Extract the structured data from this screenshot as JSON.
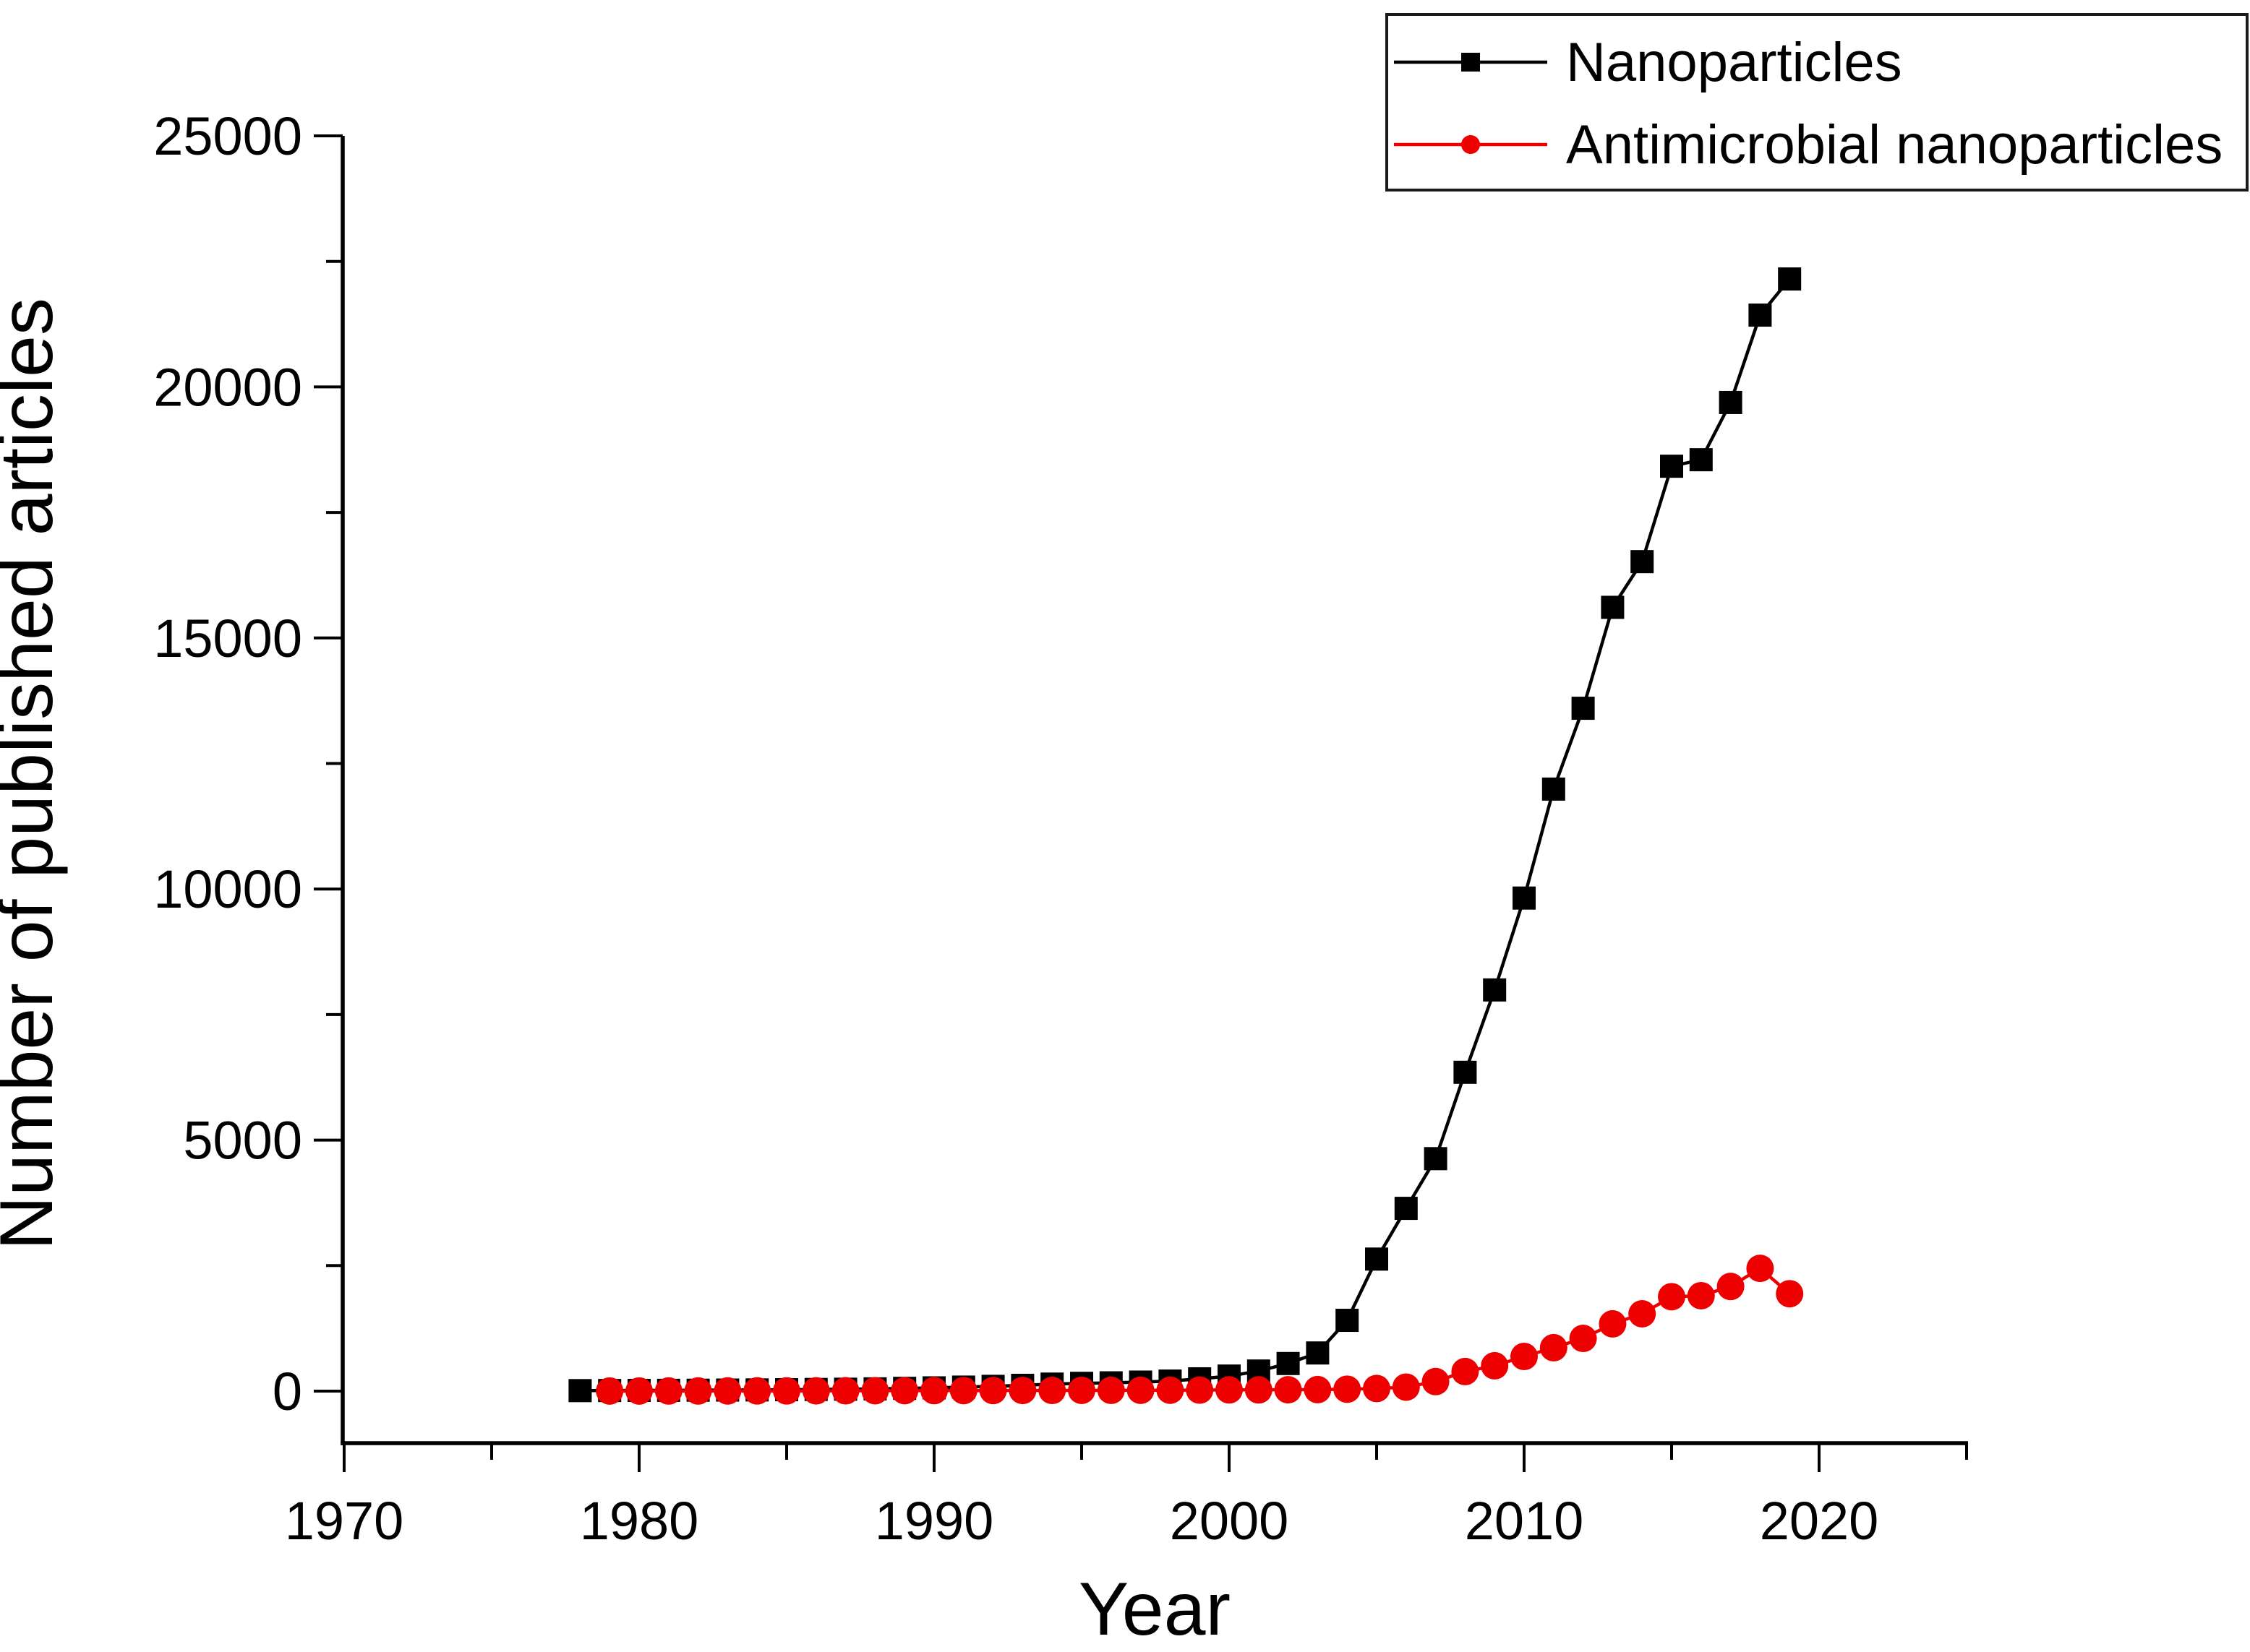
{
  "figure": {
    "background": "#ffffff"
  },
  "chart_data": {
    "type": "line",
    "title": "",
    "xlabel": "Year",
    "ylabel": "Number of published articles",
    "grid": false,
    "legend_position": "top-right",
    "axis_color": "#000000",
    "x_range": [
      1970,
      2025
    ],
    "y_range": [
      -1040,
      25000
    ],
    "x_major_ticks": [
      1970,
      1980,
      1990,
      2000,
      2010,
      2020
    ],
    "x_minor_ticks": [
      1975,
      1985,
      1995,
      2005,
      2015,
      2025
    ],
    "y_major_ticks": [
      0,
      5000,
      10000,
      15000,
      20000,
      25000
    ],
    "y_minor_ticks": [
      2500,
      7500,
      12500,
      17500,
      22500
    ],
    "series": [
      {
        "name": "Nanoparticles",
        "color": "#000000",
        "marker": "square",
        "x": [
          1978,
          1979,
          1980,
          1981,
          1982,
          1983,
          1984,
          1985,
          1986,
          1987,
          1988,
          1989,
          1990,
          1991,
          1992,
          1993,
          1994,
          1995,
          1996,
          1997,
          1998,
          1999,
          2000,
          2001,
          2002,
          2003,
          2004,
          2005,
          2006,
          2007,
          2008,
          2009,
          2010,
          2011,
          2012,
          2013,
          2014,
          2015,
          2016,
          2017,
          2018,
          2019
        ],
        "y": [
          10,
          12,
          14,
          16,
          18,
          21,
          24,
          28,
          33,
          38,
          45,
          55,
          65,
          80,
          95,
          115,
          140,
          155,
          165,
          180,
          200,
          245,
          300,
          400,
          550,
          760,
          1410,
          2630,
          3640,
          4630,
          6350,
          7990,
          9820,
          11990,
          13600,
          15610,
          16520,
          18420,
          18550,
          19690,
          21430,
          22150
        ]
      },
      {
        "name": "Antimicrobial nanoparticles",
        "color": "#ee0000",
        "marker": "circle",
        "x": [
          1979,
          1980,
          1981,
          1982,
          1983,
          1984,
          1985,
          1986,
          1987,
          1988,
          1989,
          1990,
          1991,
          1992,
          1993,
          1994,
          1995,
          1996,
          1997,
          1998,
          1999,
          2000,
          2001,
          2002,
          2003,
          2004,
          2005,
          2006,
          2007,
          2008,
          2009,
          2010,
          2011,
          2012,
          2013,
          2014,
          2015,
          2016,
          2017,
          2018,
          2019
        ],
        "y": [
          2,
          2,
          3,
          3,
          4,
          5,
          5,
          6,
          7,
          8,
          9,
          10,
          11,
          12,
          13,
          14,
          15,
          16,
          17,
          18,
          20,
          25,
          25,
          27,
          30,
          38,
          52,
          80,
          190,
          390,
          505,
          690,
          865,
          1050,
          1340,
          1540,
          1880,
          1900,
          2085,
          2445,
          1940
        ]
      }
    ]
  }
}
